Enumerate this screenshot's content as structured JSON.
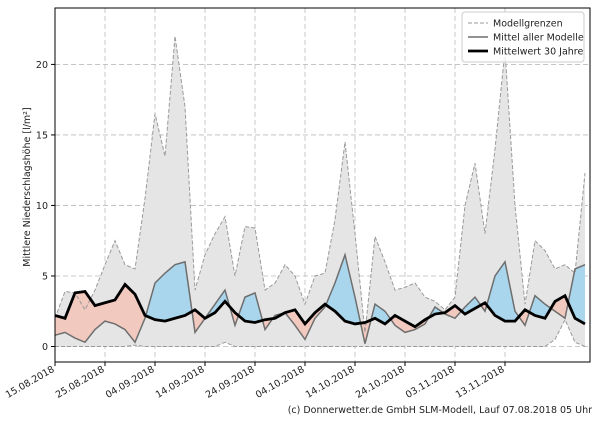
{
  "chart_data": {
    "type": "range-line",
    "ylabel": "Mittlere Niederschlagshöhe [l/m²]",
    "source": "(c) Donnerwetter.de GmbH SLM-Modell, Lauf 07.08.2018 05 Uhr",
    "x": [
      "15.08.2018",
      "17.08.2018",
      "19.08.2018",
      "21.08.2018",
      "23.08.2018",
      "25.08.2018",
      "27.08.2018",
      "29.08.2018",
      "31.08.2018",
      "02.09.2018",
      "04.09.2018",
      "06.09.2018",
      "08.09.2018",
      "10.09.2018",
      "12.09.2018",
      "14.09.2018",
      "16.09.2018",
      "18.09.2018",
      "20.09.2018",
      "22.09.2018",
      "24.09.2018",
      "26.09.2018",
      "28.09.2018",
      "30.09.2018",
      "02.10.2018",
      "04.10.2018",
      "06.10.2018",
      "08.10.2018",
      "10.10.2018",
      "12.10.2018",
      "14.10.2018",
      "16.10.2018",
      "18.10.2018",
      "20.10.2018",
      "22.10.2018",
      "24.10.2018",
      "26.10.2018",
      "28.10.2018",
      "30.10.2018",
      "01.11.2018",
      "03.11.2018",
      "05.11.2018",
      "07.11.2018",
      "09.11.2018",
      "11.11.2018",
      "13.11.2018",
      "15.11.2018",
      "17.11.2018",
      "19.11.2018",
      "21.11.2018",
      "23.11.2018",
      "25.11.2018",
      "27.11.2018",
      "29.11.2018"
    ],
    "xlim": [
      "15.08.2018",
      "30.11.2018"
    ],
    "xticks": [
      "15.08.2018",
      "25.08.2018",
      "04.09.2018",
      "14.09.2018",
      "24.09.2018",
      "04.10.2018",
      "14.10.2018",
      "24.10.2018",
      "03.11.2018",
      "13.11.2018"
    ],
    "ylim": [
      -1.1,
      24
    ],
    "yticks": [
      0,
      5,
      10,
      15,
      20
    ],
    "grid": true,
    "legend": "upper right",
    "fill_above_color": "#a9d6ec",
    "fill_below_color": "#f2c9bf",
    "band_color": "#e5e5e5",
    "series": [
      {
        "name": "Modellgrenzen",
        "color": "#9a9a9a",
        "values": [
          2.0,
          3.9,
          3.8,
          2.6,
          4.0,
          5.8,
          7.5,
          5.8,
          5.5,
          10.5,
          16.5,
          13.5,
          22.0,
          17.0,
          4.0,
          6.5,
          8.0,
          9.2,
          5.0,
          8.5,
          8.4,
          4.0,
          4.5,
          5.8,
          5.0,
          3.0,
          5.0,
          5.2,
          9.0,
          14.5,
          8.0,
          1.0,
          7.8,
          6.0,
          4.0,
          4.2,
          4.5,
          3.5,
          3.2,
          2.6,
          3.5,
          10.0,
          13.0,
          8.0,
          14.0,
          21.0,
          10.0,
          3.0,
          7.5,
          6.8,
          5.5,
          5.8,
          5.2,
          12.3
        ],
        "lower": [
          0,
          0,
          0,
          0,
          0,
          0,
          0,
          0,
          0.1,
          0,
          0,
          0,
          0,
          0,
          0,
          0,
          0,
          0.3,
          0,
          0,
          0,
          0,
          0,
          0,
          0,
          0,
          0,
          0,
          0,
          0,
          0,
          0,
          0,
          0,
          0,
          0,
          0,
          0,
          0,
          0,
          0,
          0,
          0,
          0,
          0,
          0,
          0,
          0,
          0,
          0,
          0.5,
          1.9,
          0.3,
          0
        ]
      },
      {
        "name": "Mittel aller Modelle",
        "color": "#6e6e6e",
        "values": [
          0.8,
          1.0,
          0.6,
          0.3,
          1.2,
          1.8,
          1.6,
          1.2,
          0.3,
          2.0,
          4.5,
          5.2,
          5.8,
          6.0,
          1.0,
          2.0,
          3.0,
          4.0,
          1.5,
          3.5,
          3.8,
          1.2,
          2.2,
          2.4,
          1.5,
          0.5,
          2.0,
          2.8,
          4.5,
          6.5,
          3.5,
          0.2,
          3.0,
          2.5,
          1.5,
          1.0,
          1.2,
          1.6,
          2.8,
          2.3,
          2.0,
          2.8,
          3.5,
          2.5,
          5.0,
          6.0,
          2.5,
          1.5,
          3.6,
          3.0,
          2.5,
          2.0,
          5.5,
          5.8
        ]
      },
      {
        "name": "Mittelwert 30 Jahre",
        "color": "#000000",
        "values": [
          2.2,
          2.0,
          3.8,
          3.9,
          2.9,
          3.1,
          3.3,
          4.4,
          3.7,
          2.2,
          1.9,
          1.8,
          2.0,
          2.2,
          2.6,
          2.0,
          2.4,
          3.2,
          2.4,
          1.8,
          1.7,
          1.9,
          2.0,
          2.4,
          2.6,
          1.6,
          2.4,
          3.0,
          2.5,
          1.8,
          1.6,
          1.7,
          2.0,
          1.6,
          2.2,
          1.8,
          1.4,
          1.9,
          2.3,
          2.4,
          2.9,
          2.3,
          2.7,
          3.1,
          2.2,
          1.8,
          1.8,
          2.6,
          2.2,
          2.0,
          3.2,
          3.6,
          2.0,
          1.6
        ]
      }
    ]
  }
}
